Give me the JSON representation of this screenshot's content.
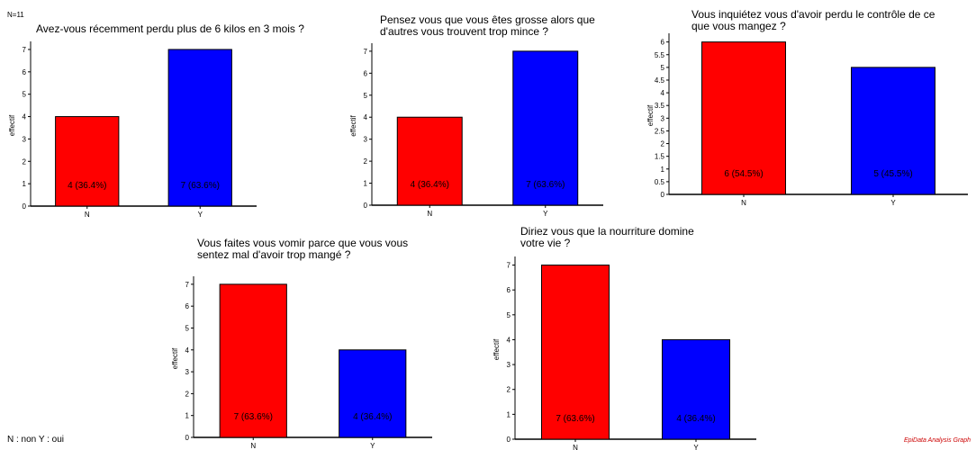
{
  "header": {
    "n_total": "N=11"
  },
  "legend": {
    "text": "N : non Y : oui"
  },
  "footer": {
    "text": "EpiData Analysis Graph"
  },
  "colors": {
    "N": "#ff0000",
    "Y": "#0000ff"
  },
  "chart_data": [
    {
      "type": "bar",
      "title_lines": [
        "Avez-vous récemment perdu plus de 6 kilos en 3 mois ?"
      ],
      "ylabel": "effectif",
      "categories": [
        "N",
        "Y"
      ],
      "values": [
        4,
        7
      ],
      "labels": [
        "4 (36.4%)",
        "7 (63.6%)"
      ],
      "ylim": [
        0,
        7.2
      ],
      "ticks": [
        "0",
        "1",
        "2",
        "3",
        "4",
        "5",
        "6",
        "7"
      ]
    },
    {
      "type": "bar",
      "title_lines": [
        "Pensez vous que vous êtes grosse alors que",
        "d'autres vous trouvent trop mince ?"
      ],
      "ylabel": "effectif",
      "categories": [
        "N",
        "Y"
      ],
      "values": [
        4,
        7
      ],
      "labels": [
        "4 (36.4%)",
        "7 (63.6%)"
      ],
      "ylim": [
        0,
        7.2
      ],
      "ticks": [
        "0",
        "1",
        "2",
        "3",
        "4",
        "5",
        "6",
        "7"
      ]
    },
    {
      "type": "bar",
      "title_lines": [
        "Vous inquiétez vous d'avoir perdu le contrôle de ce",
        "que vous mangez ?"
      ],
      "ylabel": "effectif",
      "categories": [
        "N",
        "Y"
      ],
      "values": [
        6,
        5
      ],
      "labels": [
        "6 (54.5%)",
        "5 (45.5%)"
      ],
      "ylim": [
        0,
        6.2
      ],
      "ticks": [
        "0",
        "0.5",
        "1",
        "1.5",
        "2",
        "2.5",
        "3",
        "3.5",
        "4",
        "4.5",
        "5",
        "5.5",
        "6"
      ]
    },
    {
      "type": "bar",
      "title_lines": [
        "Vous faites vous vomir parce que vous vous",
        "sentez mal d'avoir trop mangé ?"
      ],
      "ylabel": "effectif",
      "categories": [
        "N",
        "Y"
      ],
      "values": [
        7,
        4
      ],
      "labels": [
        "7 (63.6%)",
        "4 (36.4%)"
      ],
      "ylim": [
        0,
        7.2
      ],
      "ticks": [
        "0",
        "1",
        "2",
        "3",
        "4",
        "5",
        "6",
        "7"
      ]
    },
    {
      "type": "bar",
      "title_lines": [
        "Diriez vous que la nourriture domine",
        "votre vie ?"
      ],
      "ylabel": "effectif",
      "categories": [
        "N",
        "Y"
      ],
      "values": [
        7,
        4
      ],
      "labels": [
        "7 (63.6%)",
        "4 (36.4%)"
      ],
      "ylim": [
        0,
        7.2
      ],
      "ticks": [
        "0",
        "1",
        "2",
        "3",
        "4",
        "5",
        "6",
        "7"
      ]
    }
  ]
}
